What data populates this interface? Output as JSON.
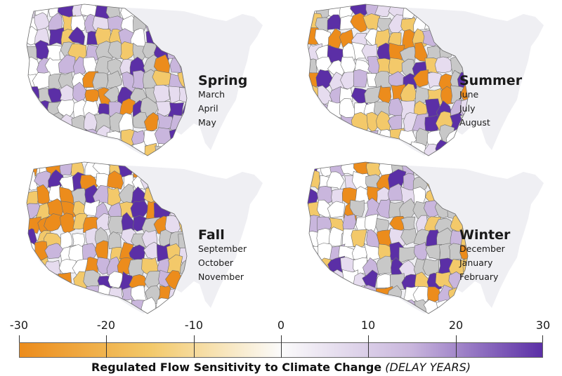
{
  "panels": [
    {
      "id": "spring",
      "season": "Spring",
      "months": [
        "March",
        "April",
        "May"
      ]
    },
    {
      "id": "summer",
      "season": "Summer",
      "months": [
        "June",
        "July",
        "August"
      ]
    },
    {
      "id": "fall",
      "season": "Fall",
      "months": [
        "September",
        "October",
        "November"
      ]
    },
    {
      "id": "winter",
      "season": "Winter",
      "months": [
        "December",
        "January",
        "February"
      ]
    }
  ],
  "colors": {
    "background_us": "#efeff3",
    "no_data": "#c8c8c8",
    "outline": "#6e6e6e",
    "scale_orange_dark": "#ec8c1c",
    "scale_orange_light": "#f3c96a",
    "scale_neutral": "#fbfbfb",
    "scale_purple_light": "#c9b6dd",
    "scale_purple_dark": "#5b2fa6"
  },
  "legend": {
    "ticks": [
      "-30",
      "-20",
      "-10",
      "0",
      "10",
      "20",
      "30"
    ],
    "title_bold": "Regulated Flow Sensitivity to Climate Change",
    "title_units": "(DELAY YEARS)"
  }
}
